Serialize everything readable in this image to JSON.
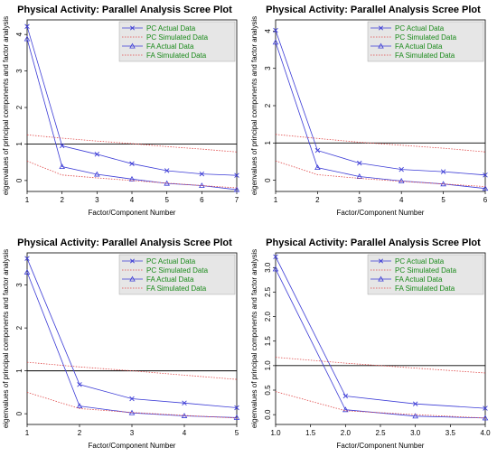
{
  "colors": {
    "pc_actual": "#3b3bd6",
    "pc_simulated": "#e04a4a",
    "fa_actual": "#3b3bd6",
    "fa_simulated": "#e04a4a",
    "legend_text": "#1a8a1a",
    "legend_bg": "#e6e6e6",
    "reference_line": "#000000"
  },
  "chart_data": [
    {
      "type": "line",
      "title": "Physical Activity: Parallel Analysis Scree Plot",
      "xlabel": "Factor/Component Number",
      "ylabel": "eigenvalues of principal components and factor analysis",
      "xlim": [
        1,
        7
      ],
      "ylim": [
        -0.3,
        4.4
      ],
      "xticks": [
        "1",
        "2",
        "3",
        "4",
        "5",
        "6",
        "7"
      ],
      "yticks": [
        "0",
        "1",
        "2",
        "3",
        "4"
      ],
      "reference_line": 1,
      "legend_position": "top-right",
      "series": [
        {
          "name": "PC  Actual Data",
          "x": [
            1,
            2,
            3,
            4,
            5,
            6,
            7
          ],
          "values": [
            4.22,
            0.95,
            0.72,
            0.46,
            0.27,
            0.18,
            0.14
          ]
        },
        {
          "name": "PC  Simulated Data",
          "x": [
            1,
            2,
            3,
            4,
            5,
            6,
            7
          ],
          "values": [
            1.25,
            1.16,
            1.08,
            1.01,
            0.93,
            0.86,
            0.78
          ]
        },
        {
          "name": "FA  Actual Data",
          "x": [
            1,
            2,
            3,
            4,
            5,
            6,
            7
          ],
          "values": [
            3.88,
            0.38,
            0.17,
            0.04,
            -0.08,
            -0.14,
            -0.25
          ]
        },
        {
          "name": "FA  Simulated Data",
          "x": [
            1,
            2,
            3,
            4,
            5,
            6,
            7
          ],
          "values": [
            0.53,
            0.15,
            0.07,
            0.0,
            -0.07,
            -0.14,
            -0.2
          ]
        }
      ]
    },
    {
      "type": "line",
      "title": "Physical Activity: Parallel Analysis Scree Plot",
      "xlabel": "Factor/Component Number",
      "ylabel": "eigenvalues of principal components and factor analysis",
      "xlim": [
        1,
        6
      ],
      "ylim": [
        -0.3,
        4.3
      ],
      "xticks": [
        "1",
        "2",
        "3",
        "4",
        "5",
        "6"
      ],
      "yticks": [
        "0",
        "1",
        "2",
        "3",
        "4"
      ],
      "reference_line": 1,
      "legend_position": "top-right",
      "series": [
        {
          "name": "PC  Actual Data",
          "x": [
            1,
            2,
            3,
            4,
            5,
            6
          ],
          "values": [
            4.02,
            0.8,
            0.46,
            0.29,
            0.23,
            0.14
          ]
        },
        {
          "name": "PC  Simulated Data",
          "x": [
            1,
            2,
            3,
            4,
            5,
            6
          ],
          "values": [
            1.23,
            1.12,
            1.02,
            0.94,
            0.86,
            0.76
          ]
        },
        {
          "name": "FA  Actual Data",
          "x": [
            1,
            2,
            3,
            4,
            5,
            6
          ],
          "values": [
            3.7,
            0.34,
            0.1,
            -0.02,
            -0.1,
            -0.22
          ]
        },
        {
          "name": "FA  Simulated Data",
          "x": [
            1,
            2,
            3,
            4,
            5,
            6
          ],
          "values": [
            0.52,
            0.15,
            0.05,
            -0.03,
            -0.1,
            -0.17
          ]
        }
      ]
    },
    {
      "type": "line",
      "title": "Physical Activity: Parallel Analysis Scree Plot",
      "xlabel": "Factor/Component Number",
      "ylabel": "eigenvalues of principal components and factor analysis",
      "xlim": [
        1,
        5
      ],
      "ylim": [
        -0.25,
        3.75
      ],
      "xticks": [
        "1",
        "2",
        "3",
        "4",
        "5"
      ],
      "yticks": [
        "0",
        "1",
        "2",
        "3"
      ],
      "reference_line": 1,
      "legend_position": "top-right",
      "series": [
        {
          "name": "PC  Actual Data",
          "x": [
            1,
            2,
            3,
            4,
            5
          ],
          "values": [
            3.62,
            0.68,
            0.35,
            0.25,
            0.14
          ]
        },
        {
          "name": "PC  Simulated Data",
          "x": [
            1,
            2,
            3,
            4,
            5
          ],
          "values": [
            1.2,
            1.09,
            1.0,
            0.9,
            0.8
          ]
        },
        {
          "name": "FA  Actual Data",
          "x": [
            1,
            2,
            3,
            4,
            5
          ],
          "values": [
            3.3,
            0.18,
            0.02,
            -0.05,
            -0.09
          ]
        },
        {
          "name": "FA  Simulated Data",
          "x": [
            1,
            2,
            3,
            4,
            5
          ],
          "values": [
            0.5,
            0.12,
            0.03,
            -0.04,
            -0.1
          ]
        }
      ]
    },
    {
      "type": "line",
      "title": "Physical Activity: Parallel Analysis Scree Plot",
      "xlabel": "Factor/Component Number",
      "ylabel": "eigenvalues of principal components and factor analysis",
      "xlim": [
        1,
        4
      ],
      "ylim": [
        -0.2,
        3.3
      ],
      "xticks": [
        "1.0",
        "1.5",
        "2.0",
        "2.5",
        "3.0",
        "3.5",
        "4.0"
      ],
      "xtick_values": [
        1,
        1.5,
        2,
        2.5,
        3,
        3.5,
        4
      ],
      "yticks": [
        "0.0",
        "0.5",
        "1.0",
        "1.5",
        "2.0",
        "2.5",
        "3.0"
      ],
      "reference_line": 1,
      "legend_position": "top-right",
      "series": [
        {
          "name": "PC  Actual Data",
          "x": [
            1,
            2,
            3,
            4
          ],
          "values": [
            3.22,
            0.38,
            0.22,
            0.13
          ]
        },
        {
          "name": "PC  Simulated Data",
          "x": [
            1,
            2,
            3,
            4
          ],
          "values": [
            1.17,
            1.05,
            0.95,
            0.85
          ]
        },
        {
          "name": "FA  Actual Data",
          "x": [
            1,
            2,
            3,
            4
          ],
          "values": [
            2.97,
            0.1,
            -0.03,
            -0.07
          ]
        },
        {
          "name": "FA  Simulated Data",
          "x": [
            1,
            2,
            3,
            4
          ],
          "values": [
            0.47,
            0.08,
            0.0,
            -0.07
          ]
        }
      ]
    }
  ]
}
